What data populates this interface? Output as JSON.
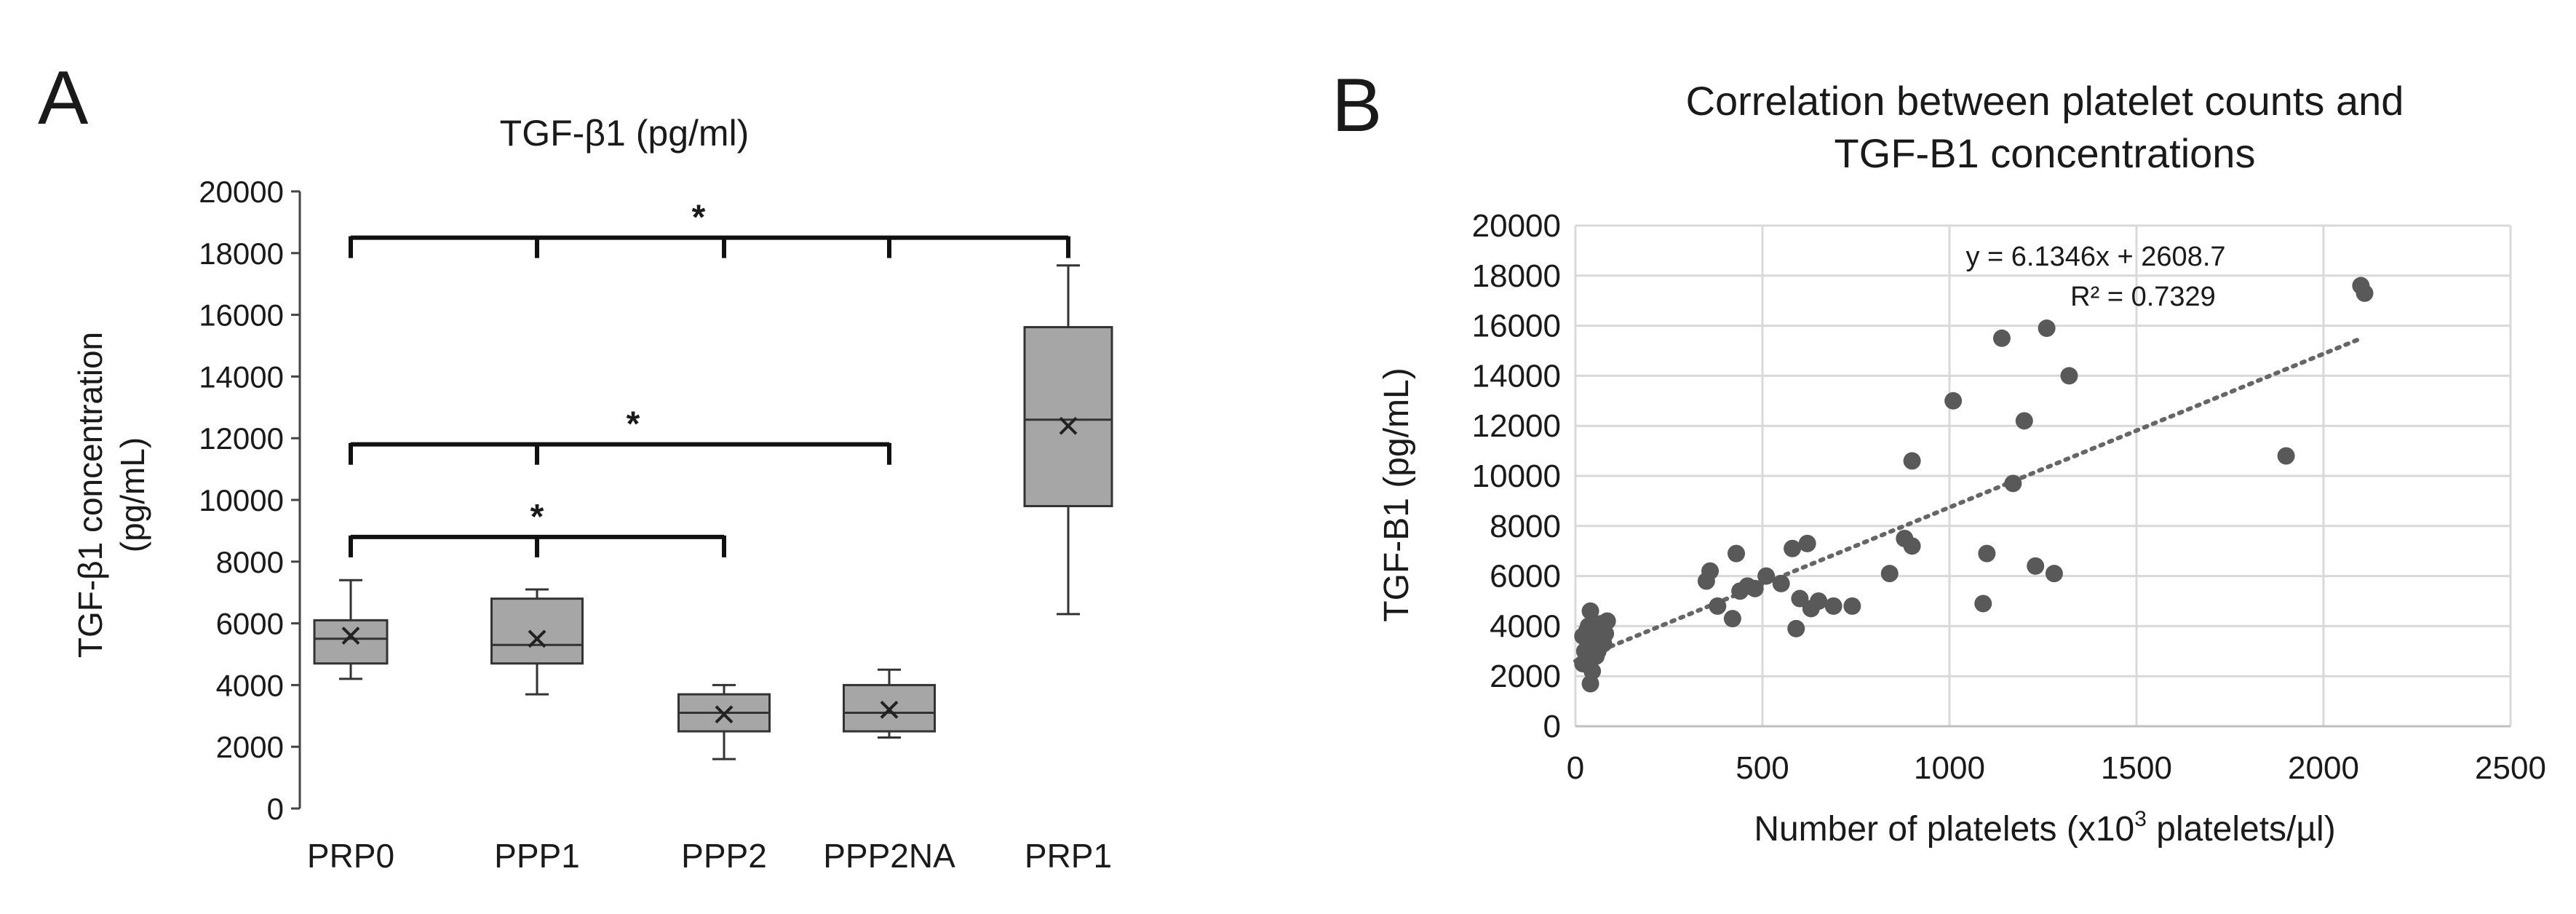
{
  "panel_a": {
    "label": "A",
    "chart_data": {
      "type": "box",
      "title": "TGF-β1 (pg/ml)",
      "ylabel_line1": "TGF-β1 concentration",
      "ylabel_line2": "(pg/mL)",
      "ylim": [
        0,
        20000
      ],
      "yticks": [
        "0",
        "2000",
        "4000",
        "6000",
        "8000",
        "10000",
        "12000",
        "14000",
        "16000",
        "18000",
        "20000"
      ],
      "categories": [
        "PRP0",
        "PPP1",
        "PPP2",
        "PPP2NA",
        "PRP1"
      ],
      "boxes": [
        {
          "name": "PRP0",
          "min": 4200,
          "q1": 4700,
          "median": 5500,
          "q3": 6100,
          "max": 7400,
          "mean": 5600
        },
        {
          "name": "PPP1",
          "min": 3700,
          "q1": 4700,
          "median": 5300,
          "q3": 6800,
          "max": 7100,
          "mean": 5500
        },
        {
          "name": "PPP2",
          "min": 1600,
          "q1": 2500,
          "median": 3100,
          "q3": 3700,
          "max": 4000,
          "mean": 3050
        },
        {
          "name": "PPP2NA",
          "min": 2300,
          "q1": 2500,
          "median": 3100,
          "q3": 4000,
          "max": 4500,
          "mean": 3200
        },
        {
          "name": "PRP1",
          "min": 6300,
          "q1": 9800,
          "median": 12600,
          "q3": 15600,
          "max": 17600,
          "mean": 12400
        }
      ],
      "significance": [
        {
          "label": "*",
          "from": "PRP0",
          "to": "PRP1",
          "level": 18500,
          "ticks": [
            "PRP0",
            "PPP1",
            "PPP2",
            "PPP2NA",
            "PRP1"
          ]
        },
        {
          "label": "*",
          "from": "PRP0",
          "to": "PPP2NA",
          "level": 11800,
          "ticks": [
            "PRP0",
            "PPP1",
            "PPP2NA"
          ]
        },
        {
          "label": "*",
          "from": "PRP0",
          "to": "PPP2",
          "level": 8800,
          "ticks": [
            "PRP0",
            "PPP1",
            "PPP2"
          ]
        }
      ]
    }
  },
  "panel_b": {
    "label": "B",
    "chart_data": {
      "type": "scatter",
      "title_line1": "Correlation between platelet counts and",
      "title_line2": "TGF-B1 concentrations",
      "xlabel_pre": "Number of platelets (x10",
      "xlabel_sup": "3",
      "xlabel_post": " platelets/µl)",
      "ylabel": "TGF-B1 (pg/mL)",
      "xlim": [
        0,
        2500
      ],
      "ylim": [
        0,
        20000
      ],
      "xticks": [
        "0",
        "500",
        "1000",
        "1500",
        "2000",
        "2500"
      ],
      "yticks": [
        "0",
        "2000",
        "4000",
        "6000",
        "8000",
        "10000",
        "12000",
        "14000",
        "16000",
        "18000",
        "20000"
      ],
      "grid": true,
      "trendline": {
        "slope": 6.1346,
        "intercept": 2608.7,
        "x_range": [
          0,
          2100
        ]
      },
      "equation_text": "y = 6.1346x + 2608.7",
      "r2_text": "R² = 0.7329",
      "points": [
        [
          20,
          2500
        ],
        [
          25,
          3000
        ],
        [
          30,
          2700
        ],
        [
          35,
          3300
        ],
        [
          40,
          1700
        ],
        [
          30,
          3800
        ],
        [
          40,
          4600
        ],
        [
          50,
          3500
        ],
        [
          60,
          3000
        ],
        [
          70,
          4100
        ],
        [
          80,
          3700
        ],
        [
          55,
          2800
        ],
        [
          65,
          3900
        ],
        [
          45,
          2200
        ],
        [
          75,
          3300
        ],
        [
          35,
          4000
        ],
        [
          85,
          4200
        ],
        [
          20,
          3600
        ],
        [
          350,
          5800
        ],
        [
          360,
          6200
        ],
        [
          380,
          4800
        ],
        [
          420,
          4300
        ],
        [
          430,
          6900
        ],
        [
          440,
          5400
        ],
        [
          460,
          5600
        ],
        [
          480,
          5500
        ],
        [
          510,
          6000
        ],
        [
          550,
          5700
        ],
        [
          580,
          7100
        ],
        [
          590,
          3900
        ],
        [
          600,
          5100
        ],
        [
          620,
          7300
        ],
        [
          630,
          4700
        ],
        [
          650,
          5000
        ],
        [
          690,
          4800
        ],
        [
          740,
          4800
        ],
        [
          840,
          6100
        ],
        [
          880,
          7500
        ],
        [
          900,
          7200
        ],
        [
          900,
          10600
        ],
        [
          1010,
          13000
        ],
        [
          1090,
          4900
        ],
        [
          1100,
          6900
        ],
        [
          1140,
          15500
        ],
        [
          1170,
          9700
        ],
        [
          1200,
          12200
        ],
        [
          1230,
          6400
        ],
        [
          1260,
          15900
        ],
        [
          1280,
          6100
        ],
        [
          1320,
          14000
        ],
        [
          1900,
          10800
        ],
        [
          2100,
          17600
        ],
        [
          2110,
          17300
        ]
      ]
    }
  }
}
